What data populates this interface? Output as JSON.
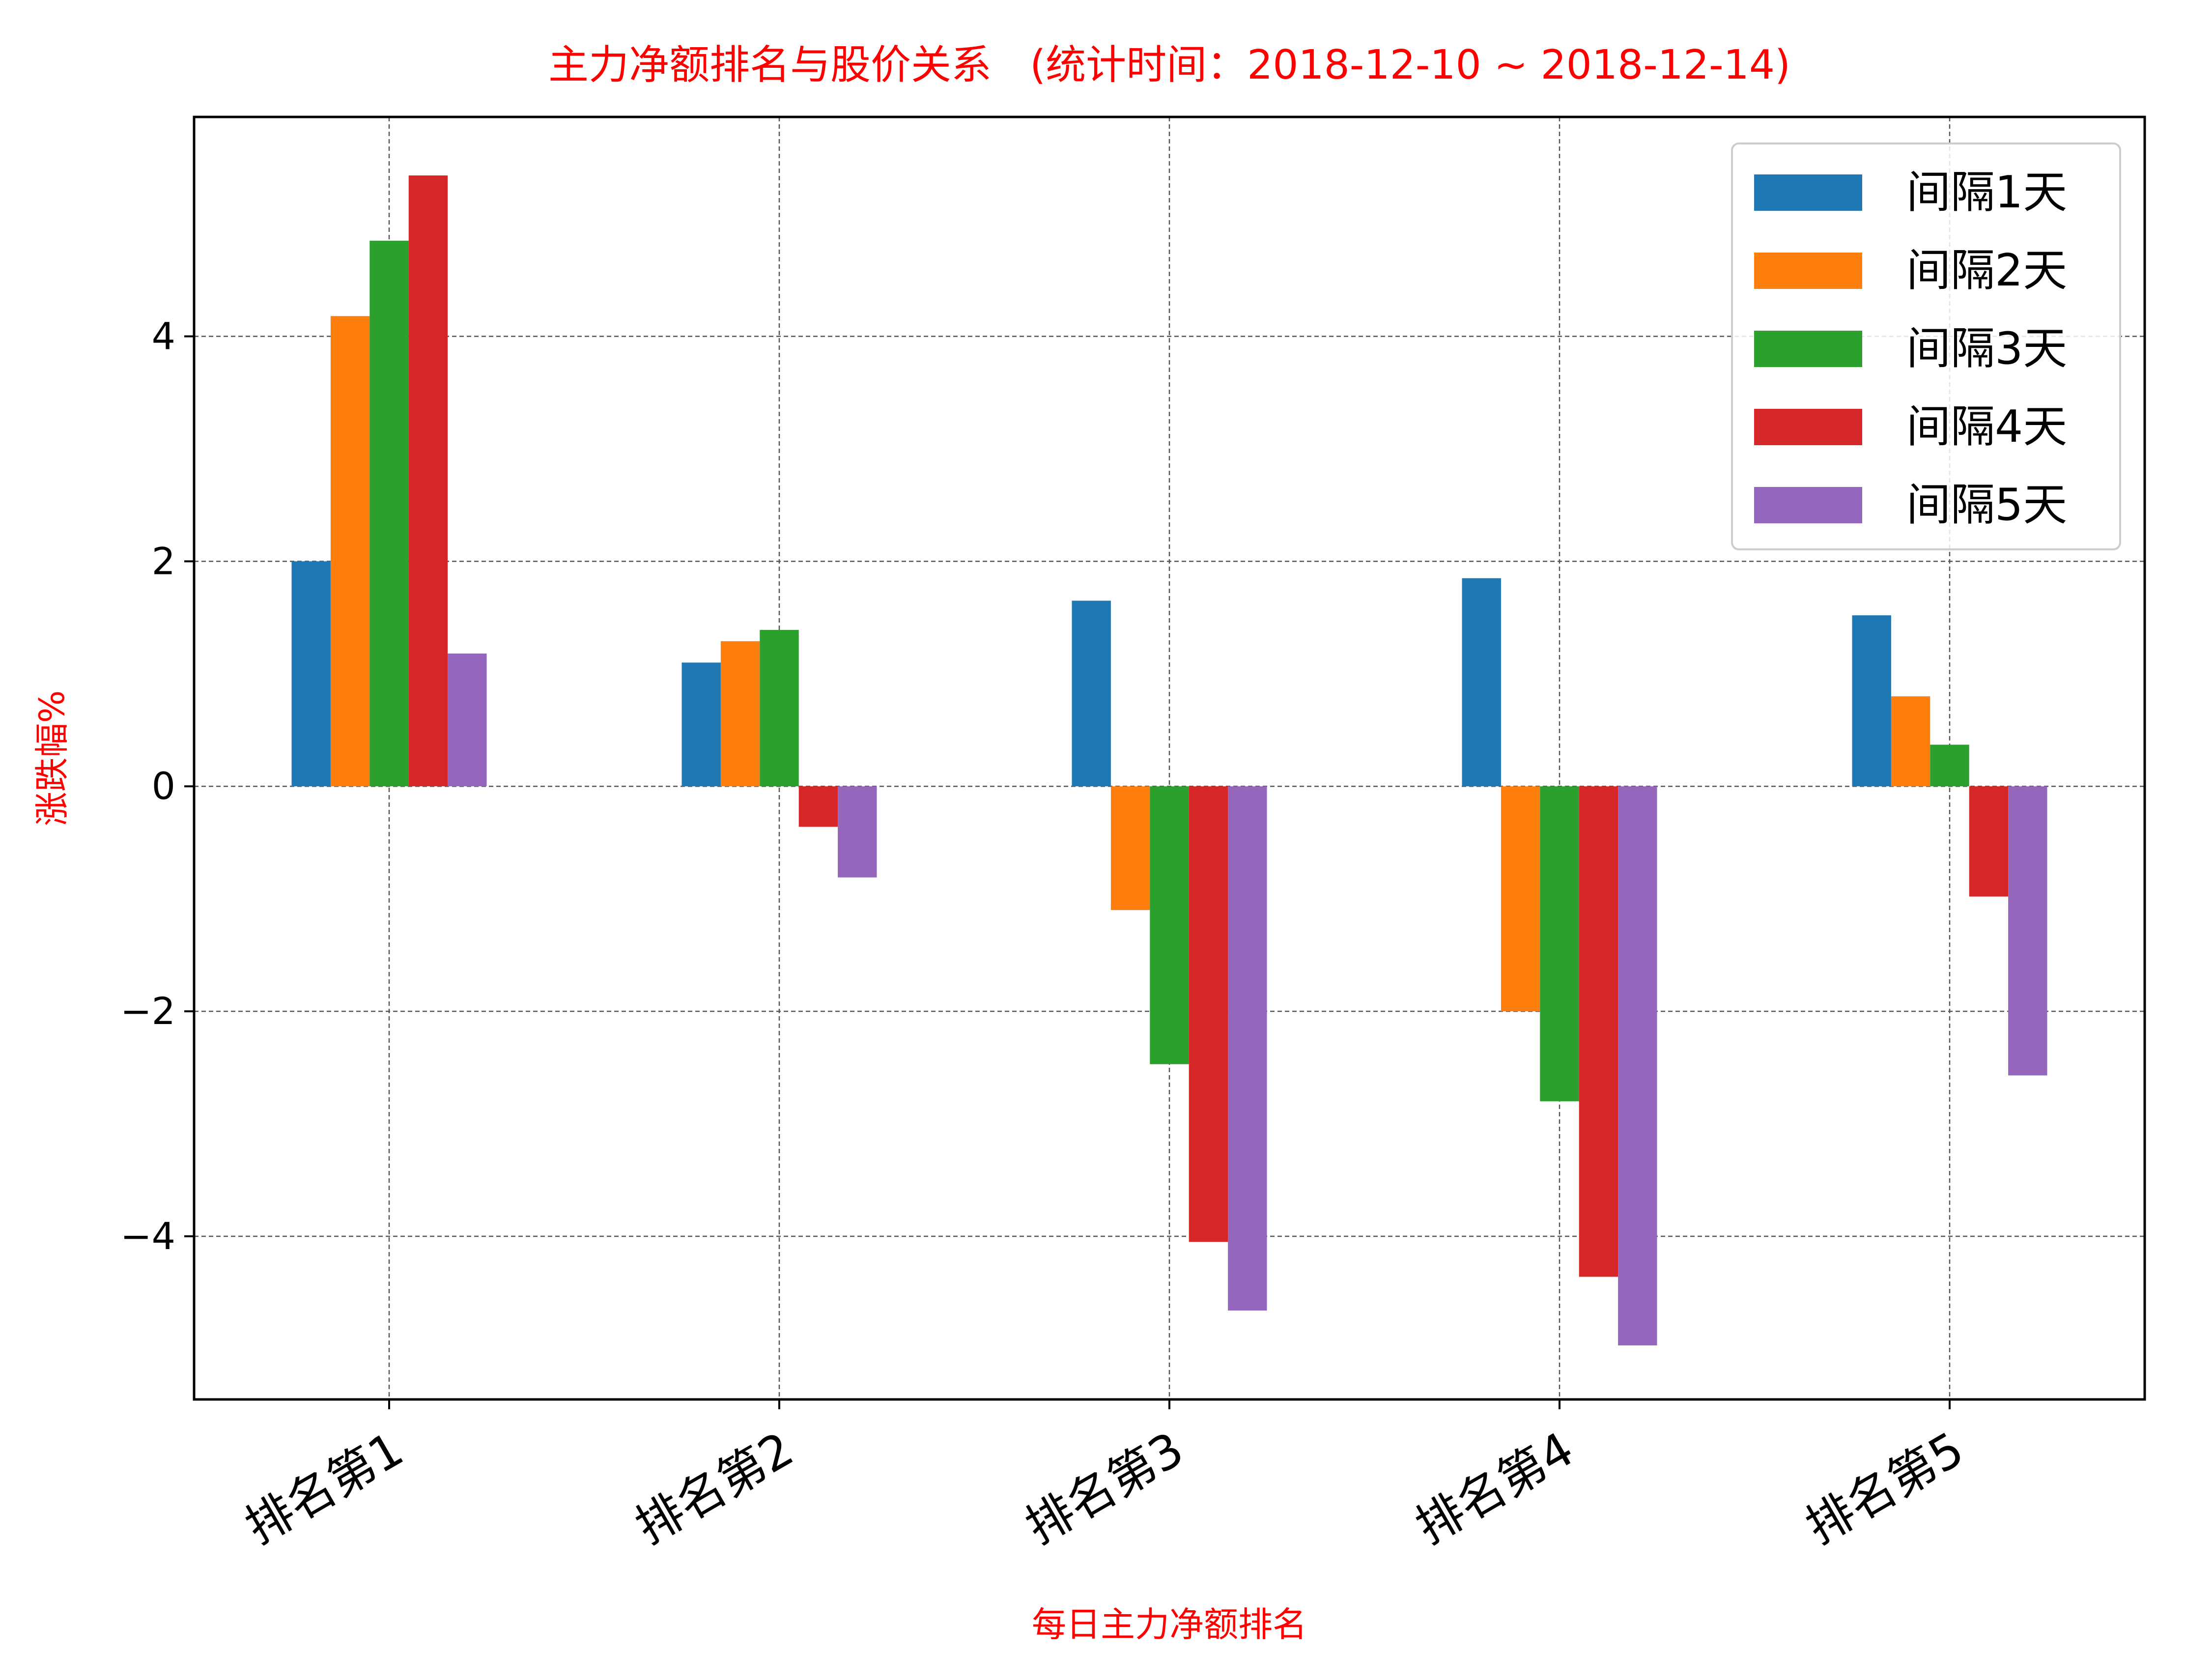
{
  "chart_data": {
    "type": "bar",
    "title": "主力净额排名与股价关系   (统计时间：2018-12-10 ~ 2018-12-14)",
    "xlabel": "每日主力净额排名",
    "ylabel": "涨跌幅%",
    "categories": [
      "排名第1",
      "排名第2",
      "排名第3",
      "排名第4",
      "排名第5"
    ],
    "ylim": [
      -5.45,
      5.95
    ],
    "yticks": [
      -4,
      -2,
      0,
      2,
      4
    ],
    "ytick_labels": [
      "−4",
      "−2",
      "0",
      "2",
      "4"
    ],
    "grid": true,
    "legend_position": "top-right",
    "series": [
      {
        "name": "间隔1天",
        "color": "#1f77b4",
        "values": [
          2.0,
          1.1,
          1.65,
          1.85,
          1.52
        ]
      },
      {
        "name": "间隔2天",
        "color": "#ff7f0e",
        "values": [
          4.18,
          1.29,
          -1.1,
          -2.0,
          0.8
        ]
      },
      {
        "name": "间隔3天",
        "color": "#2ca02c",
        "values": [
          4.85,
          1.39,
          -2.47,
          -2.8,
          0.37
        ]
      },
      {
        "name": "间隔4天",
        "color": "#d62728",
        "values": [
          5.43,
          -0.36,
          -4.05,
          -4.36,
          -0.98
        ]
      },
      {
        "name": "间隔5天",
        "color": "#9467bd",
        "values": [
          1.18,
          -0.81,
          -4.66,
          -4.97,
          -2.57
        ]
      }
    ],
    "title_color": "#ff0000",
    "label_color": "#ff0000"
  }
}
